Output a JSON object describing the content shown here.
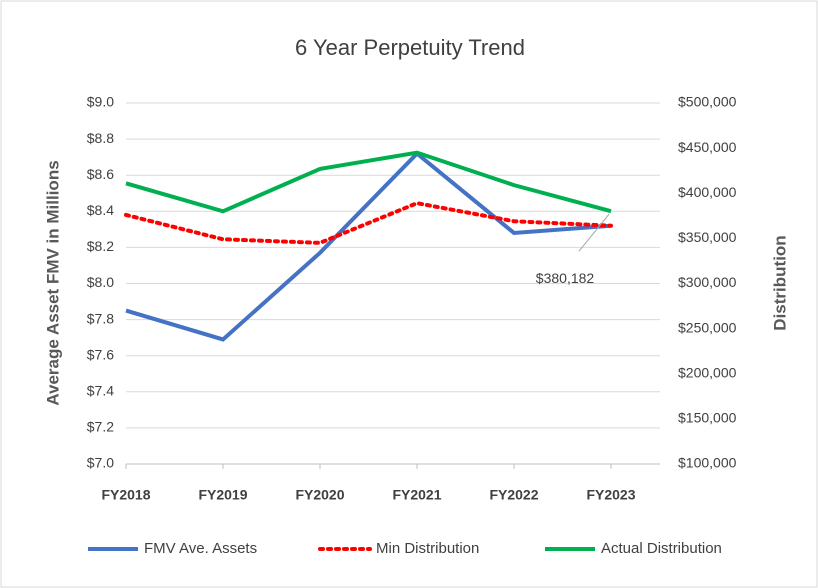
{
  "chart_data": {
    "type": "line",
    "title": "6 Year Perpetuity Trend",
    "y_label": "Average Asset FMV in Millions",
    "y2_label": "Distribution",
    "categories": [
      "FY2018",
      "FY2019",
      "FY2020",
      "FY2021",
      "FY2022",
      "FY2023"
    ],
    "ylim": [
      7.0,
      9.0
    ],
    "yticks": [
      {
        "value": 7.0,
        "label": "$7.0"
      },
      {
        "value": 7.2,
        "label": "$7.2"
      },
      {
        "value": 7.4,
        "label": "$7.4"
      },
      {
        "value": 7.6,
        "label": "$7.6"
      },
      {
        "value": 7.8,
        "label": "$7.8"
      },
      {
        "value": 8.0,
        "label": "$8.0"
      },
      {
        "value": 8.2,
        "label": "$8.2"
      },
      {
        "value": 8.4,
        "label": "$8.4"
      },
      {
        "value": 8.6,
        "label": "$8.6"
      },
      {
        "value": 8.8,
        "label": "$8.8"
      },
      {
        "value": 9.0,
        "label": "$9.0"
      }
    ],
    "y2lim": [
      100000,
      500000
    ],
    "y2ticks": [
      {
        "value": 100000,
        "label": "$100,000"
      },
      {
        "value": 150000,
        "label": "$150,000"
      },
      {
        "value": 200000,
        "label": "$200,000"
      },
      {
        "value": 250000,
        "label": "$250,000"
      },
      {
        "value": 300000,
        "label": "$300,000"
      },
      {
        "value": 350000,
        "label": "$350,000"
      },
      {
        "value": 400000,
        "label": "$400,000"
      },
      {
        "value": 450000,
        "label": "$450,000"
      },
      {
        "value": 500000,
        "label": "$500,000"
      }
    ],
    "grid": true,
    "legend": "bottom",
    "series": [
      {
        "name": "FMV Ave. Assets",
        "color": "#4472c4",
        "dash": "solid",
        "values": [
          7.85,
          7.69,
          8.17,
          8.72,
          8.28,
          8.32
        ]
      },
      {
        "name": "Min Distribution",
        "color": "#ff0000",
        "dash": "dotted",
        "axis": "y2",
        "values": [
          376000,
          349000,
          345000,
          389000,
          369000,
          364000
        ]
      },
      {
        "name": "Actual Distribution",
        "color": "#00b050",
        "dash": "solid",
        "axis": "y2",
        "values": [
          411000,
          380000,
          427000,
          445000,
          409000,
          380182
        ],
        "value_labels": [
          null,
          null,
          null,
          null,
          null,
          "$380,182"
        ]
      }
    ]
  }
}
